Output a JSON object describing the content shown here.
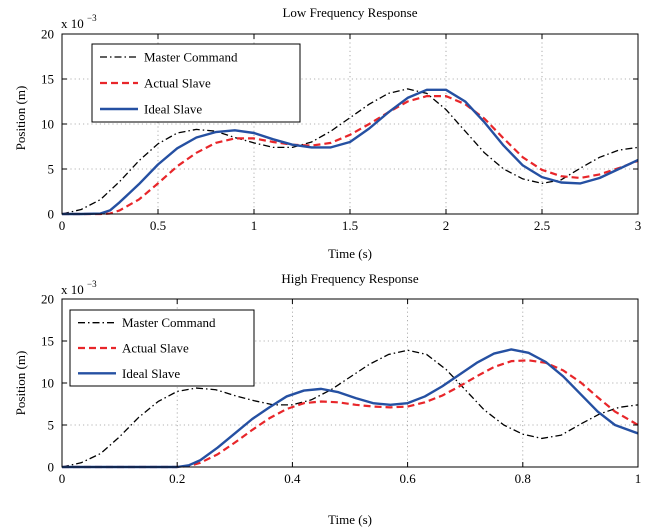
{
  "chart_data": [
    {
      "type": "line",
      "title": "Low Frequency Response",
      "xlabel": "Time (s)",
      "ylabel": "Position (m)",
      "exponent_prefix": "x 10",
      "exponent_power": "−3",
      "xlim": [
        0,
        3
      ],
      "ylim": [
        0,
        20
      ],
      "xticks": [
        0,
        0.5,
        1,
        1.5,
        2,
        2.5,
        3
      ],
      "xtick_labels": [
        "0",
        "0.5",
        "1",
        "1.5",
        "2",
        "2.5",
        "3"
      ],
      "yticks": [
        0,
        5,
        10,
        15,
        20
      ],
      "ytick_labels": [
        "0",
        "5",
        "10",
        "15",
        "20"
      ],
      "grid": true,
      "legend_position": "top-left",
      "series": [
        {
          "name": "Master Command",
          "color": "#000000",
          "style": "dash-dot",
          "x": [
            0,
            0.1,
            0.2,
            0.3,
            0.4,
            0.5,
            0.6,
            0.7,
            0.8,
            0.9,
            1.0,
            1.1,
            1.2,
            1.3,
            1.4,
            1.5,
            1.6,
            1.7,
            1.8,
            1.9,
            2.0,
            2.1,
            2.2,
            2.3,
            2.4,
            2.5,
            2.6,
            2.7,
            2.8,
            2.9,
            3.0
          ],
          "y": [
            0,
            0.5,
            1.6,
            3.6,
            5.9,
            7.8,
            9.0,
            9.4,
            9.2,
            8.5,
            7.9,
            7.4,
            7.4,
            8.0,
            9.2,
            10.7,
            12.2,
            13.4,
            13.9,
            13.4,
            11.6,
            9.2,
            6.8,
            5.0,
            3.9,
            3.4,
            3.8,
            5.1,
            6.3,
            7.1,
            7.4
          ]
        },
        {
          "name": "Actual Slave",
          "color": "#e8262a",
          "style": "dashed",
          "x": [
            0,
            0.1,
            0.2,
            0.25,
            0.3,
            0.4,
            0.5,
            0.6,
            0.7,
            0.8,
            0.9,
            1.0,
            1.1,
            1.2,
            1.3,
            1.4,
            1.5,
            1.6,
            1.7,
            1.8,
            1.9,
            2.0,
            2.1,
            2.2,
            2.3,
            2.4,
            2.5,
            2.6,
            2.7,
            2.8,
            2.9,
            3.0
          ],
          "y": [
            0,
            0,
            0,
            0.05,
            0.4,
            1.6,
            3.4,
            5.3,
            6.8,
            7.9,
            8.4,
            8.4,
            8.0,
            7.7,
            7.6,
            7.9,
            8.8,
            10.0,
            11.3,
            12.5,
            13.1,
            13.1,
            12.2,
            10.6,
            8.4,
            6.3,
            4.9,
            4.2,
            4.0,
            4.4,
            5.1,
            5.9
          ]
        },
        {
          "name": "Ideal Slave",
          "color": "#2550a2",
          "style": "solid",
          "x": [
            0,
            0.1,
            0.2,
            0.25,
            0.3,
            0.4,
            0.5,
            0.6,
            0.7,
            0.8,
            0.9,
            1.0,
            1.1,
            1.2,
            1.3,
            1.4,
            1.5,
            1.6,
            1.7,
            1.8,
            1.9,
            2.0,
            2.1,
            2.2,
            2.3,
            2.4,
            2.5,
            2.6,
            2.7,
            2.8,
            2.9,
            3.0
          ],
          "y": [
            0,
            0,
            0.05,
            0.4,
            1.3,
            3.3,
            5.5,
            7.3,
            8.5,
            9.1,
            9.3,
            9.0,
            8.3,
            7.7,
            7.4,
            7.4,
            8.0,
            9.5,
            11.3,
            12.9,
            13.8,
            13.8,
            12.5,
            10.2,
            7.6,
            5.4,
            4.1,
            3.5,
            3.4,
            4.0,
            5.0,
            6.0
          ]
        }
      ]
    },
    {
      "type": "line",
      "title": "High Frequency Response",
      "xlabel": "Time (s)",
      "ylabel": "Position (m)",
      "exponent_prefix": "x 10",
      "exponent_power": "−3",
      "xlim": [
        0,
        1
      ],
      "ylim": [
        0,
        20
      ],
      "xticks": [
        0,
        0.2,
        0.4,
        0.6,
        0.8,
        1
      ],
      "xtick_labels": [
        "0",
        "0.2",
        "0.4",
        "0.6",
        "0.8",
        "1"
      ],
      "yticks": [
        0,
        5,
        10,
        15,
        20
      ],
      "ytick_labels": [
        "0",
        "5",
        "10",
        "15",
        "20"
      ],
      "grid": true,
      "legend_position": "top-left",
      "series": [
        {
          "name": "Master Command",
          "color": "#000000",
          "style": "dash-dot",
          "x": [
            0,
            0.033,
            0.067,
            0.1,
            0.133,
            0.167,
            0.2,
            0.233,
            0.267,
            0.3,
            0.333,
            0.367,
            0.4,
            0.433,
            0.467,
            0.5,
            0.533,
            0.567,
            0.6,
            0.633,
            0.667,
            0.7,
            0.733,
            0.767,
            0.8,
            0.833,
            0.867,
            0.9,
            0.933,
            0.967,
            1.0
          ],
          "y": [
            0,
            0.5,
            1.6,
            3.6,
            5.9,
            7.8,
            9.0,
            9.4,
            9.2,
            8.5,
            7.9,
            7.4,
            7.4,
            8.0,
            9.2,
            10.7,
            12.2,
            13.4,
            13.9,
            13.4,
            11.6,
            9.2,
            6.8,
            5.0,
            3.9,
            3.4,
            3.8,
            5.1,
            6.3,
            7.1,
            7.4
          ]
        },
        {
          "name": "Actual Slave",
          "color": "#e8262a",
          "style": "dashed",
          "x": [
            0,
            0.05,
            0.1,
            0.15,
            0.2,
            0.22,
            0.24,
            0.27,
            0.3,
            0.33,
            0.36,
            0.39,
            0.42,
            0.45,
            0.48,
            0.51,
            0.54,
            0.57,
            0.6,
            0.63,
            0.66,
            0.69,
            0.72,
            0.75,
            0.78,
            0.81,
            0.84,
            0.87,
            0.9,
            0.93,
            0.96,
            1.0
          ],
          "y": [
            0,
            0,
            0,
            0,
            0,
            0.1,
            0.5,
            1.5,
            2.9,
            4.4,
            5.8,
            6.9,
            7.6,
            7.8,
            7.7,
            7.4,
            7.2,
            7.1,
            7.2,
            7.7,
            8.5,
            9.6,
            10.8,
            11.9,
            12.6,
            12.7,
            12.4,
            11.5,
            10.1,
            8.3,
            6.6,
            5.0
          ]
        },
        {
          "name": "Ideal Slave",
          "color": "#2550a2",
          "style": "solid",
          "x": [
            0,
            0.05,
            0.1,
            0.15,
            0.2,
            0.22,
            0.24,
            0.27,
            0.3,
            0.33,
            0.36,
            0.39,
            0.42,
            0.45,
            0.48,
            0.51,
            0.54,
            0.57,
            0.6,
            0.63,
            0.66,
            0.69,
            0.72,
            0.75,
            0.78,
            0.81,
            0.84,
            0.87,
            0.9,
            0.93,
            0.96,
            1.0
          ],
          "y": [
            0,
            0,
            0,
            0,
            0,
            0.2,
            0.8,
            2.3,
            4.0,
            5.7,
            7.1,
            8.4,
            9.1,
            9.3,
            8.9,
            8.2,
            7.6,
            7.4,
            7.6,
            8.4,
            9.6,
            11.0,
            12.4,
            13.5,
            14.0,
            13.6,
            12.5,
            10.8,
            8.7,
            6.6,
            5.0,
            4.0
          ]
        }
      ]
    }
  ]
}
